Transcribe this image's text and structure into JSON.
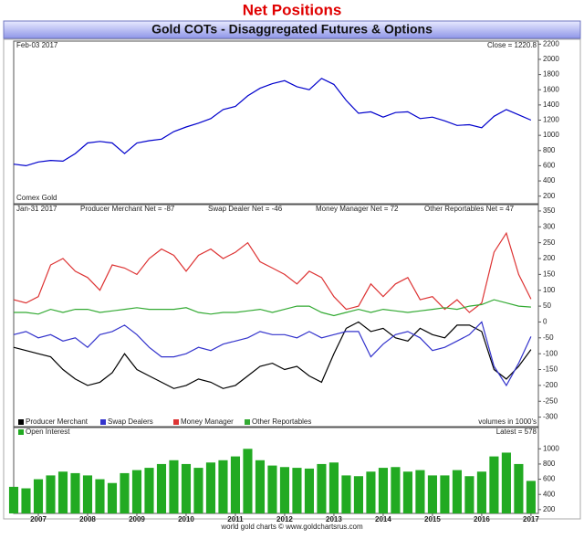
{
  "title": "Net Positions",
  "subtitle": "Gold COTs - Disaggregated Futures & Options",
  "footer": "world gold charts © www.goldchartsrus.com",
  "chart_data": [
    {
      "type": "line",
      "date": "Feb-03 2017",
      "note": "Close = 1220.8",
      "name": "Comex Gold",
      "x": [
        2006.5,
        2006.75,
        2007,
        2007.25,
        2007.5,
        2007.75,
        2008,
        2008.25,
        2008.5,
        2008.75,
        2009,
        2009.25,
        2009.5,
        2009.75,
        2010,
        2010.25,
        2010.5,
        2010.75,
        2011,
        2011.25,
        2011.5,
        2011.75,
        2012,
        2012.25,
        2012.5,
        2012.75,
        2013,
        2013.25,
        2013.5,
        2013.75,
        2014,
        2014.25,
        2014.5,
        2014.75,
        2015,
        2015.25,
        2015.5,
        2015.75,
        2016,
        2016.25,
        2016.5,
        2016.75,
        2017
      ],
      "xlim": [
        2006.5,
        2017.15
      ],
      "series": [
        {
          "color": "#0000cc",
          "values": [
            620,
            600,
            650,
            670,
            660,
            760,
            900,
            920,
            900,
            760,
            900,
            930,
            950,
            1050,
            1110,
            1160,
            1220,
            1340,
            1380,
            1520,
            1620,
            1680,
            1720,
            1640,
            1600,
            1750,
            1670,
            1460,
            1290,
            1310,
            1240,
            1300,
            1310,
            1220,
            1240,
            1190,
            1130,
            1140,
            1100,
            1250,
            1340,
            1270,
            1200
          ]
        }
      ],
      "ylim": [
        100,
        2240
      ],
      "yticks": [
        200,
        400,
        600,
        800,
        1000,
        1200,
        1400,
        1600,
        1800,
        2000,
        2200
      ]
    },
    {
      "type": "line",
      "date": "Jan-31 2017",
      "notes": [
        "Producer Merchant Net = -87",
        "Swap Dealer Net = -46",
        "Money Manager Net = 72",
        "Other Reportables Net = 47"
      ],
      "legend": "lower left",
      "legend_note": "volumes in 1000's",
      "x": [
        2006.5,
        2006.75,
        2007,
        2007.25,
        2007.5,
        2007.75,
        2008,
        2008.25,
        2008.5,
        2008.75,
        2009,
        2009.25,
        2009.5,
        2009.75,
        2010,
        2010.25,
        2010.5,
        2010.75,
        2011,
        2011.25,
        2011.5,
        2011.75,
        2012,
        2012.25,
        2012.5,
        2012.75,
        2013,
        2013.25,
        2013.5,
        2013.75,
        2014,
        2014.25,
        2014.5,
        2014.75,
        2015,
        2015.25,
        2015.5,
        2015.75,
        2016,
        2016.25,
        2016.5,
        2016.75,
        2017
      ],
      "xlim": [
        2006.5,
        2017.15
      ],
      "series": [
        {
          "name": "Producer Merchant",
          "color": "#000000",
          "values": [
            -80,
            -90,
            -100,
            -110,
            -150,
            -180,
            -200,
            -190,
            -160,
            -100,
            -150,
            -170,
            -190,
            -210,
            -200,
            -180,
            -190,
            -210,
            -200,
            -170,
            -140,
            -130,
            -150,
            -140,
            -170,
            -190,
            -100,
            -20,
            0,
            -30,
            -20,
            -50,
            -60,
            -20,
            -40,
            -50,
            -10,
            -10,
            -30,
            -150,
            -180,
            -140,
            -87
          ]
        },
        {
          "name": "Swap Dealers",
          "color": "#3333cc",
          "values": [
            -40,
            -30,
            -50,
            -40,
            -60,
            -50,
            -80,
            -40,
            -30,
            -10,
            -40,
            -80,
            -110,
            -110,
            -100,
            -80,
            -90,
            -70,
            -60,
            -50,
            -30,
            -40,
            -40,
            -50,
            -30,
            -50,
            -40,
            -30,
            -30,
            -110,
            -70,
            -40,
            -30,
            -50,
            -90,
            -80,
            -60,
            -40,
            0,
            -140,
            -200,
            -130,
            -46
          ]
        },
        {
          "name": "Money Manager",
          "color": "#dd3333",
          "values": [
            70,
            60,
            80,
            180,
            200,
            160,
            140,
            100,
            180,
            170,
            150,
            200,
            230,
            210,
            160,
            210,
            230,
            200,
            220,
            250,
            190,
            170,
            150,
            120,
            160,
            140,
            80,
            40,
            50,
            120,
            80,
            120,
            140,
            70,
            80,
            40,
            70,
            30,
            60,
            220,
            280,
            150,
            72
          ]
        },
        {
          "name": "Other Reportables",
          "color": "#33aa33",
          "values": [
            30,
            30,
            25,
            40,
            30,
            40,
            40,
            30,
            35,
            40,
            45,
            40,
            40,
            40,
            45,
            30,
            25,
            30,
            30,
            35,
            40,
            30,
            40,
            50,
            50,
            30,
            20,
            30,
            40,
            30,
            40,
            35,
            30,
            35,
            40,
            45,
            40,
            50,
            55,
            70,
            60,
            50,
            47
          ]
        }
      ],
      "ylim": [
        -330,
        370
      ],
      "yticks": [
        -300,
        -250,
        -200,
        -150,
        -100,
        -50,
        0,
        50,
        100,
        150,
        200,
        250,
        300,
        350
      ]
    },
    {
      "type": "bar",
      "note": "Latest = 578",
      "legend": "upper left",
      "x": [
        2006.5,
        2006.75,
        2007,
        2007.25,
        2007.5,
        2007.75,
        2008,
        2008.25,
        2008.5,
        2008.75,
        2009,
        2009.25,
        2009.5,
        2009.75,
        2010,
        2010.25,
        2010.5,
        2010.75,
        2011,
        2011.25,
        2011.5,
        2011.75,
        2012,
        2012.25,
        2012.5,
        2012.75,
        2013,
        2013.25,
        2013.5,
        2013.75,
        2014,
        2014.25,
        2014.5,
        2014.75,
        2015,
        2015.25,
        2015.5,
        2015.75,
        2016,
        2016.25,
        2016.5,
        2016.75,
        2017
      ],
      "xlim": [
        2006.5,
        2017.15
      ],
      "xticks": [
        2007,
        2008,
        2009,
        2010,
        2011,
        2012,
        2013,
        2014,
        2015,
        2016,
        2017
      ],
      "series": [
        {
          "name": "Open Interest",
          "color": "#22aa22",
          "values": [
            500,
            480,
            600,
            650,
            700,
            680,
            650,
            600,
            550,
            680,
            720,
            750,
            800,
            850,
            800,
            750,
            820,
            850,
            900,
            1000,
            850,
            780,
            760,
            750,
            740,
            800,
            820,
            650,
            640,
            700,
            750,
            760,
            700,
            720,
            650,
            650,
            720,
            640,
            700,
            900,
            950,
            800,
            578
          ]
        }
      ],
      "ylim": [
        150,
        1280
      ],
      "yticks": [
        200,
        400,
        600,
        800,
        1000
      ]
    }
  ]
}
